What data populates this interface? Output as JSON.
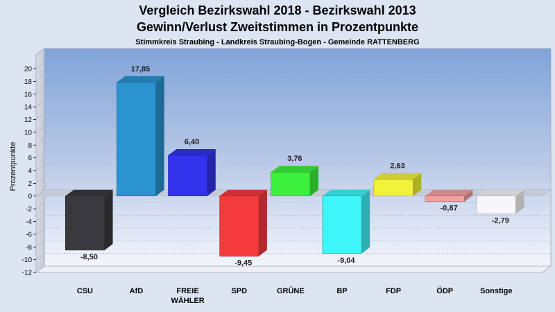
{
  "chart_data": {
    "type": "bar",
    "title": "Vergleich Bezirkswahl 2018 - Bezirkswahl 2013",
    "subtitle": "Gewinn/Verlust Zweitstimmen in Prozentpunkte",
    "subsubtitle": "Stimmkreis Straubing - Landkreis Straubing-Bogen - Gemeinde RATTENBERG",
    "ylabel": "Prozentpunkte",
    "xlabel": "",
    "ylim": [
      -12,
      20
    ],
    "yticks": [
      20,
      18,
      16,
      14,
      12,
      10,
      8,
      6,
      4,
      2,
      0,
      -2,
      -4,
      -6,
      -8,
      -10,
      -12
    ],
    "grid": true,
    "categories": [
      "CSU",
      "AfD",
      "FREIE WÄHLER",
      "SPD",
      "GRÜNE",
      "BP",
      "FDP",
      "ÖDP",
      "Sonstige"
    ],
    "category_lines": [
      [
        "CSU"
      ],
      [
        "AfD"
      ],
      [
        "FREIE",
        "WÄHLER"
      ],
      [
        "SPD"
      ],
      [
        "GRÜNE"
      ],
      [
        "BP"
      ],
      [
        "FDP"
      ],
      [
        "ÖDP"
      ],
      [
        "Sonstige"
      ]
    ],
    "values": [
      -8.5,
      17.85,
      6.4,
      -9.45,
      3.76,
      -9.04,
      2.63,
      -0.87,
      -2.79
    ],
    "value_labels": [
      "-8,50",
      "17,85",
      "6,40",
      "-9,45",
      "3,76",
      "-9,04",
      "2,63",
      "-0,87",
      "-2,79"
    ],
    "colors": [
      "#3a3a3e",
      "#2a93d0",
      "#3333ee",
      "#f53a3e",
      "#3df03d",
      "#3ef5f8",
      "#f2f23a",
      "#f5a0a0",
      "#f7f7f9"
    ]
  }
}
